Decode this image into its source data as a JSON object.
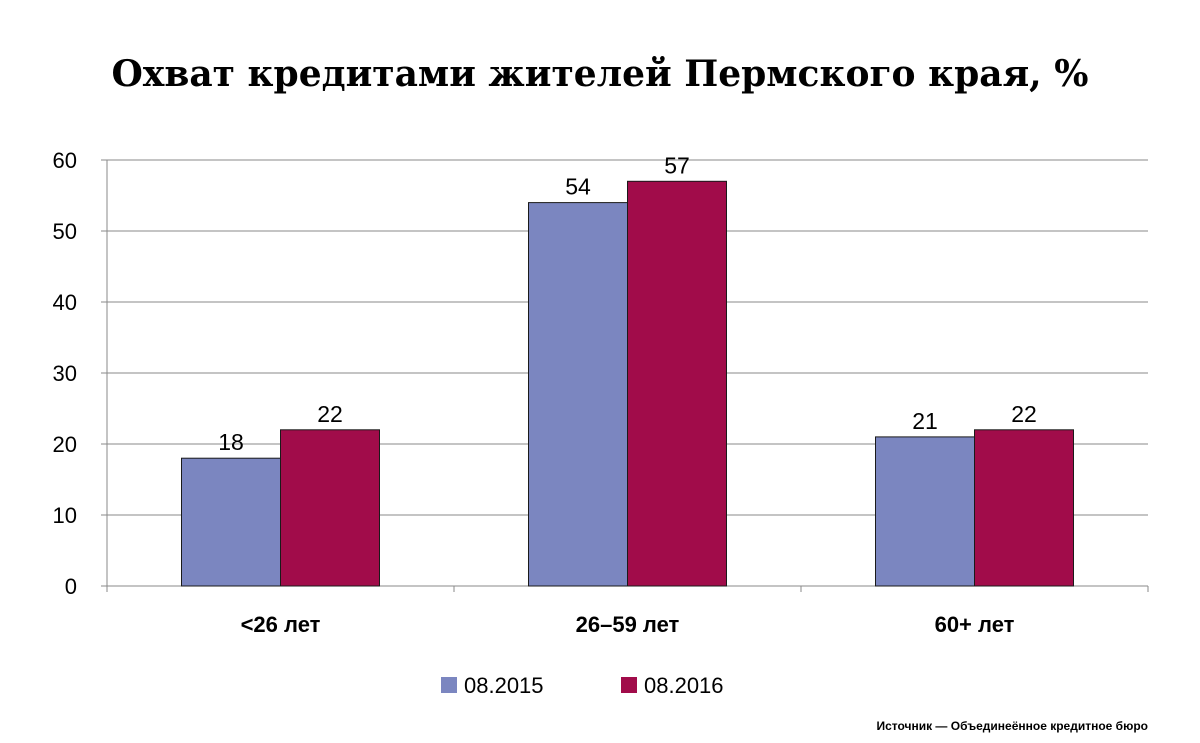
{
  "chart_data": {
    "type": "bar",
    "title": "Охват кредитами жителей Пермского края, %",
    "categories": [
      "<26 лет",
      "26–59 лет",
      "60+ лет"
    ],
    "series": [
      {
        "name": "08.2015",
        "values": [
          18,
          54,
          21
        ],
        "color": "#7b86c0"
      },
      {
        "name": "08.2016",
        "values": [
          22,
          57,
          22
        ],
        "color": "#a10c4a"
      }
    ],
    "ylim": [
      0,
      60
    ],
    "yticks": [
      0,
      10,
      20,
      30,
      40,
      50,
      60
    ],
    "grid": true,
    "legend": "bottom-center"
  },
  "source": "Источник — Объединеённое кредитное бюро"
}
